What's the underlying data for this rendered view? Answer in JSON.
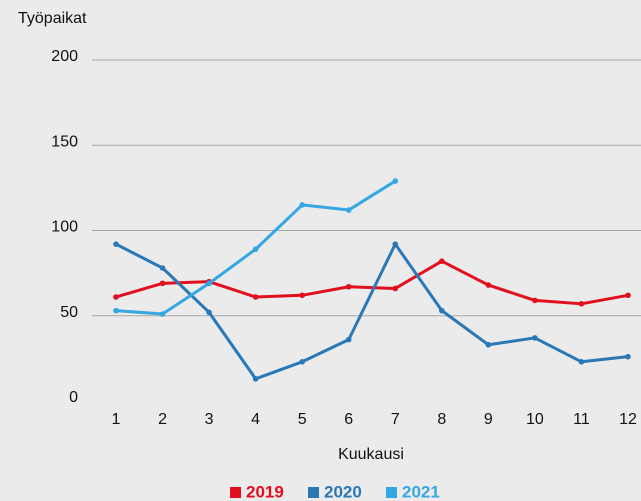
{
  "chart_data": {
    "type": "line",
    "y_label": "Työpaikat",
    "x_label": "Kuukausi",
    "categories": [
      "1",
      "2",
      "3",
      "4",
      "5",
      "6",
      "7",
      "8",
      "9",
      "10",
      "11",
      "12"
    ],
    "series": [
      {
        "name": "2019",
        "color": "#e2101f",
        "values": [
          61,
          69,
          70,
          61,
          62,
          67,
          66,
          82,
          68,
          59,
          57,
          62
        ]
      },
      {
        "name": "2020",
        "color": "#2a78b6",
        "values": [
          92,
          78,
          52,
          13,
          23,
          36,
          92,
          53,
          33,
          37,
          23,
          26
        ]
      },
      {
        "name": "2021",
        "color": "#35a7e2",
        "values": [
          53,
          51,
          69,
          89,
          115,
          112,
          129,
          null,
          null,
          null,
          null,
          null
        ]
      }
    ],
    "ylim": [
      0,
      200
    ],
    "yticks": [
      0,
      50,
      100,
      150,
      200
    ],
    "grid": true,
    "legend": "bottom"
  }
}
